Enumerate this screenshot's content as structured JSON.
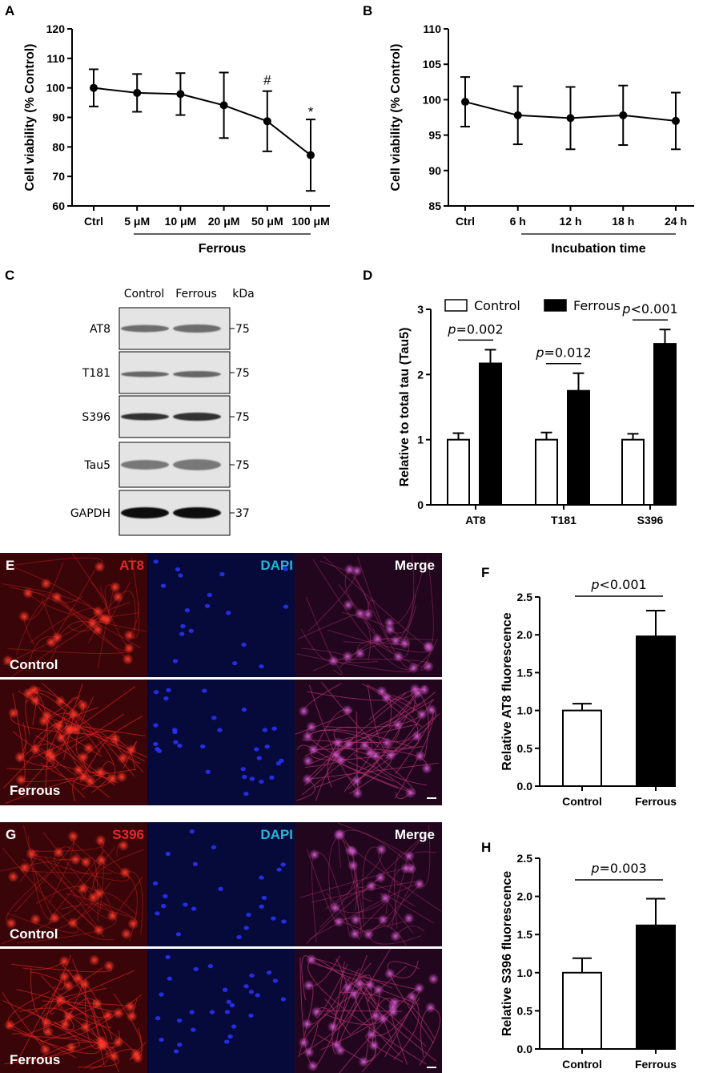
{
  "panels": {
    "A": "A",
    "B": "B",
    "C": "C",
    "D": "D",
    "E": "E",
    "F": "F",
    "G": "G",
    "H": "H"
  },
  "colors": {
    "red_stain": "#e8262a",
    "dapi_label": "#22b8d8",
    "bar_fill_control": "#ffffff",
    "bar_fill_ferrous": "#000000"
  },
  "chart_data": [
    {
      "id": "A",
      "type": "line",
      "categories": [
        "Ctrl",
        "5 μM",
        "10 μM",
        "20 μM",
        "50 μM",
        "100 μM"
      ],
      "values": [
        100,
        98.3,
        97.9,
        94.1,
        88.7,
        77.2
      ],
      "errors": [
        6.3,
        6.4,
        7.1,
        11.1,
        10.2,
        12.1
      ],
      "ylabel": "Cell viability (% Control)",
      "group_label": "Ferrous",
      "ylim": [
        60,
        120
      ],
      "yticks": [
        "60",
        "70",
        "80",
        "90",
        "100",
        "110",
        "120"
      ],
      "annotations": [
        {
          "category": "50 μM",
          "text": "#"
        },
        {
          "category": "100 μM",
          "text": "*"
        }
      ]
    },
    {
      "id": "B",
      "type": "line",
      "categories": [
        "Ctrl",
        "6 h",
        "12 h",
        "18 h",
        "24 h"
      ],
      "values": [
        99.7,
        97.8,
        97.4,
        97.8,
        97.0
      ],
      "errors": [
        3.5,
        4.1,
        4.4,
        4.2,
        4.0
      ],
      "ylabel": "Cell viability (% Control)",
      "group_label": "Incubation time",
      "ylim": [
        85,
        110
      ],
      "yticks": [
        "85",
        "90",
        "95",
        "100",
        "105",
        "110"
      ]
    },
    {
      "id": "D",
      "type": "bar",
      "categories": [
        "AT8",
        "T181",
        "S396"
      ],
      "series": [
        {
          "name": "Control",
          "values": [
            1.0,
            1.0,
            1.0
          ],
          "errors": [
            0.1,
            0.11,
            0.09
          ]
        },
        {
          "name": "Ferrous",
          "values": [
            2.17,
            1.75,
            2.47
          ],
          "errors": [
            0.21,
            0.27,
            0.22
          ]
        }
      ],
      "ylabel": "Relative to total tau (Tau5)",
      "ylim": [
        0,
        3
      ],
      "yticks": [
        "0",
        "1",
        "2",
        "3"
      ],
      "pvalues": [
        "=0.002",
        "=0.012",
        "<0.001"
      ],
      "p_letter": "p",
      "legend": "top"
    },
    {
      "id": "F",
      "type": "bar",
      "categories": [
        "Control",
        "Ferrous"
      ],
      "values": [
        1.0,
        1.98
      ],
      "errors": [
        0.09,
        0.34
      ],
      "ylabel": "Relative AT8 fluorescence",
      "ylim": [
        0,
        2.5
      ],
      "yticks": [
        "0.0",
        "0.5",
        "1.0",
        "1.5",
        "2.0",
        "2.5"
      ],
      "pvalue": "<0.001",
      "p_letter": "p"
    },
    {
      "id": "H",
      "type": "bar",
      "categories": [
        "Control",
        "Ferrous"
      ],
      "values": [
        1.0,
        1.62
      ],
      "errors": [
        0.19,
        0.35
      ],
      "ylabel": "Relative S396 fluorescence",
      "ylim": [
        0,
        2.5
      ],
      "yticks": [
        "0.0",
        "0.5",
        "1.0",
        "1.5",
        "2.0",
        "2.5"
      ],
      "pvalue": "=0.003",
      "p_letter": "p"
    }
  ],
  "blot": {
    "columns": [
      "Control",
      "Ferrous"
    ],
    "kda_label": "kDa",
    "rows": [
      {
        "label": "AT8",
        "kda": "75"
      },
      {
        "label": "T181",
        "kda": "75"
      },
      {
        "label": "S396",
        "kda": "75"
      },
      {
        "label": "Tau5",
        "kda": "75"
      },
      {
        "label": "GAPDH",
        "kda": "37"
      }
    ]
  },
  "microscopy": {
    "E": {
      "stain": "AT8",
      "dapi": "DAPI",
      "merge": "Merge",
      "row1": "Control",
      "row2": "Ferrous"
    },
    "G": {
      "stain": "S396",
      "dapi": "DAPI",
      "merge": "Merge",
      "row1": "Control",
      "row2": "Ferrous"
    }
  }
}
